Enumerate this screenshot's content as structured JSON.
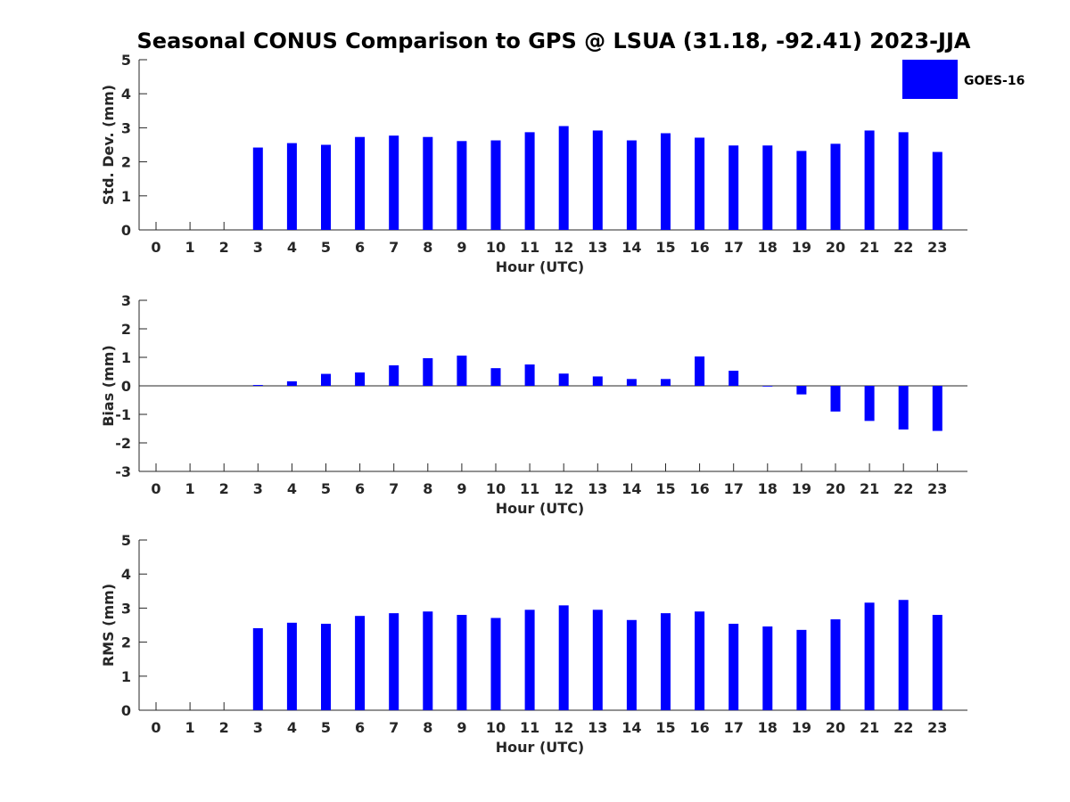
{
  "title": "Seasonal CONUS Comparison to GPS @ LSUA (31.18, -92.41) 2023-JJA",
  "legend": {
    "label": "GOES-16",
    "color": "#0000ff"
  },
  "chart_data": [
    {
      "type": "bar",
      "name": "std-dev",
      "xlabel": "Hour (UTC)",
      "ylabel": "Std. Dev. (mm)",
      "ylim": [
        0,
        5
      ],
      "yticks": [
        0,
        1,
        2,
        3,
        4,
        5
      ],
      "categories": [
        0,
        1,
        2,
        3,
        4,
        5,
        6,
        7,
        8,
        9,
        10,
        11,
        12,
        13,
        14,
        15,
        16,
        17,
        18,
        19,
        20,
        21,
        22,
        23
      ],
      "series": [
        {
          "name": "GOES-16",
          "values": [
            null,
            null,
            null,
            2.42,
            2.55,
            2.5,
            2.73,
            2.77,
            2.73,
            2.61,
            2.63,
            2.87,
            3.05,
            2.92,
            2.63,
            2.84,
            2.71,
            2.48,
            2.48,
            2.32,
            2.53,
            2.92,
            2.87,
            2.29
          ]
        }
      ]
    },
    {
      "type": "bar",
      "name": "bias",
      "xlabel": "Hour (UTC)",
      "ylabel": "Bias (mm)",
      "ylim": [
        -3,
        3
      ],
      "yticks": [
        -3,
        -2,
        -1,
        0,
        1,
        2,
        3
      ],
      "categories": [
        0,
        1,
        2,
        3,
        4,
        5,
        6,
        7,
        8,
        9,
        10,
        11,
        12,
        13,
        14,
        15,
        16,
        17,
        18,
        19,
        20,
        21,
        22,
        23
      ],
      "series": [
        {
          "name": "GOES-16",
          "values": [
            null,
            null,
            null,
            0.03,
            0.16,
            0.42,
            0.47,
            0.72,
            0.97,
            1.06,
            0.62,
            0.75,
            0.43,
            0.33,
            0.24,
            0.24,
            1.03,
            0.53,
            0.0,
            -0.3,
            -0.9,
            -1.23,
            -1.53,
            -1.58
          ]
        }
      ]
    },
    {
      "type": "bar",
      "name": "rms",
      "xlabel": "Hour (UTC)",
      "ylabel": "RMS (mm)",
      "ylim": [
        0,
        5
      ],
      "yticks": [
        0,
        1,
        2,
        3,
        4,
        5
      ],
      "categories": [
        0,
        1,
        2,
        3,
        4,
        5,
        6,
        7,
        8,
        9,
        10,
        11,
        12,
        13,
        14,
        15,
        16,
        17,
        18,
        19,
        20,
        21,
        22,
        23
      ],
      "series": [
        {
          "name": "GOES-16",
          "values": [
            null,
            null,
            null,
            2.41,
            2.57,
            2.54,
            2.77,
            2.85,
            2.9,
            2.8,
            2.71,
            2.95,
            3.08,
            2.95,
            2.65,
            2.85,
            2.9,
            2.54,
            2.46,
            2.36,
            2.67,
            3.16,
            3.24,
            2.8
          ]
        }
      ]
    }
  ]
}
